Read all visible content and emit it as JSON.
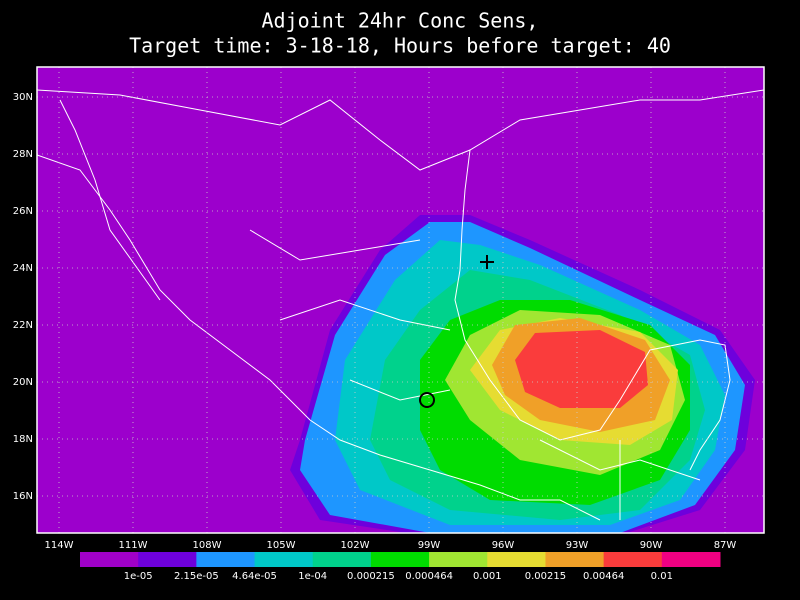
{
  "title": {
    "line1": "Adjoint 24hr Conc Sens,",
    "line2": "Target time: 3-18-18, Hours before target: 40"
  },
  "lat_labels": [
    "30N",
    "28N",
    "26N",
    "24N",
    "22N",
    "20N",
    "18N",
    "16N"
  ],
  "lon_labels": [
    "114W",
    "111W",
    "108W",
    "105W",
    "102W",
    "99W",
    "96W",
    "93W",
    "90W",
    "87W"
  ],
  "colorbar": {
    "colors": [
      "#a000c8",
      "#6e00dc",
      "#1e96ff",
      "#00c8c8",
      "#00d28c",
      "#00dc00",
      "#a0e632",
      "#e6dc32",
      "#f0a028",
      "#fa3c3c",
      "#f00082"
    ],
    "labels": [
      "1e-05",
      "2.15e-05",
      "4.64e-05",
      "1e-04",
      "0.000215",
      "0.000464",
      "0.001",
      "0.00215",
      "0.00464",
      "0.01"
    ]
  }
}
